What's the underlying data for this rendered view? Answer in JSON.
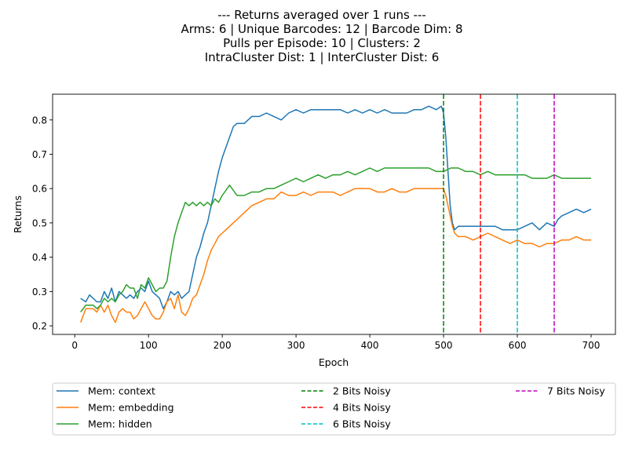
{
  "chart_data": {
    "type": "line",
    "title_lines": [
      "--- Returns averaged over 1 runs ---",
      "Arms: 6 | Unique Barcodes: 12 | Barcode Dim: 8",
      "Pulls per Episode: 10 | Clusters: 2",
      "IntraCluster Dist: 1 | InterCluster Dist: 6"
    ],
    "xlabel": "Epoch",
    "ylabel": "Returns",
    "xlim": [
      -30,
      733
    ],
    "ylim": [
      0.175,
      0.875
    ],
    "xticks": [
      0,
      100,
      200,
      300,
      400,
      500,
      600,
      700
    ],
    "yticks": [
      0.2,
      0.3,
      0.4,
      0.5,
      0.6,
      0.7,
      0.8
    ],
    "ytick_labels": [
      "0.2",
      "0.3",
      "0.4",
      "0.5",
      "0.6",
      "0.7",
      "0.8"
    ],
    "grid": false,
    "legend_placement": "below plot, 3 columns",
    "series": [
      {
        "name": "Mem: context",
        "color": "#1f77b4",
        "x": [
          8,
          15,
          20,
          25,
          30,
          35,
          40,
          45,
          50,
          55,
          60,
          65,
          70,
          75,
          80,
          85,
          90,
          95,
          100,
          105,
          110,
          115,
          120,
          125,
          130,
          135,
          140,
          145,
          150,
          155,
          160,
          165,
          170,
          175,
          180,
          185,
          190,
          195,
          200,
          205,
          210,
          215,
          220,
          225,
          230,
          240,
          250,
          260,
          270,
          280,
          290,
          300,
          310,
          320,
          330,
          340,
          350,
          360,
          370,
          380,
          390,
          400,
          410,
          420,
          430,
          440,
          450,
          460,
          470,
          480,
          490,
          497,
          500,
          503,
          506,
          509,
          512,
          515,
          520,
          530,
          540,
          550,
          560,
          570,
          580,
          590,
          600,
          610,
          620,
          630,
          640,
          650,
          655,
          660,
          670,
          680,
          690,
          700
        ],
        "values": [
          0.28,
          0.27,
          0.29,
          0.28,
          0.27,
          0.27,
          0.3,
          0.28,
          0.31,
          0.27,
          0.3,
          0.29,
          0.28,
          0.29,
          0.28,
          0.3,
          0.31,
          0.3,
          0.33,
          0.3,
          0.29,
          0.28,
          0.25,
          0.27,
          0.3,
          0.29,
          0.3,
          0.28,
          0.29,
          0.3,
          0.35,
          0.4,
          0.43,
          0.47,
          0.5,
          0.55,
          0.6,
          0.65,
          0.69,
          0.72,
          0.75,
          0.78,
          0.79,
          0.79,
          0.79,
          0.81,
          0.81,
          0.82,
          0.81,
          0.8,
          0.82,
          0.83,
          0.82,
          0.83,
          0.83,
          0.83,
          0.83,
          0.83,
          0.82,
          0.83,
          0.82,
          0.83,
          0.82,
          0.83,
          0.82,
          0.82,
          0.82,
          0.83,
          0.83,
          0.84,
          0.83,
          0.84,
          0.82,
          0.75,
          0.65,
          0.55,
          0.5,
          0.48,
          0.49,
          0.49,
          0.49,
          0.49,
          0.49,
          0.49,
          0.48,
          0.48,
          0.48,
          0.49,
          0.5,
          0.48,
          0.5,
          0.49,
          0.51,
          0.52,
          0.53,
          0.54,
          0.53,
          0.54
        ]
      },
      {
        "name": "Mem: embedding",
        "color": "#ff7f0e",
        "x": [
          8,
          15,
          20,
          25,
          30,
          35,
          40,
          45,
          50,
          55,
          60,
          65,
          70,
          75,
          80,
          85,
          90,
          95,
          100,
          105,
          110,
          115,
          120,
          125,
          130,
          135,
          140,
          145,
          150,
          155,
          160,
          165,
          170,
          175,
          180,
          185,
          190,
          195,
          200,
          205,
          210,
          220,
          230,
          240,
          250,
          260,
          270,
          280,
          290,
          300,
          310,
          320,
          330,
          340,
          350,
          360,
          370,
          380,
          390,
          400,
          410,
          420,
          430,
          440,
          450,
          460,
          470,
          480,
          490,
          497,
          500,
          503,
          506,
          509,
          512,
          515,
          520,
          530,
          540,
          550,
          560,
          570,
          580,
          590,
          600,
          610,
          620,
          630,
          640,
          650,
          660,
          670,
          680,
          690,
          700
        ],
        "values": [
          0.21,
          0.25,
          0.25,
          0.25,
          0.24,
          0.26,
          0.24,
          0.26,
          0.23,
          0.21,
          0.24,
          0.25,
          0.24,
          0.24,
          0.22,
          0.23,
          0.25,
          0.27,
          0.25,
          0.23,
          0.22,
          0.22,
          0.24,
          0.27,
          0.28,
          0.25,
          0.29,
          0.24,
          0.23,
          0.25,
          0.28,
          0.29,
          0.32,
          0.35,
          0.39,
          0.42,
          0.44,
          0.46,
          0.47,
          0.48,
          0.49,
          0.51,
          0.53,
          0.55,
          0.56,
          0.57,
          0.57,
          0.59,
          0.58,
          0.58,
          0.59,
          0.58,
          0.59,
          0.59,
          0.59,
          0.58,
          0.59,
          0.6,
          0.6,
          0.6,
          0.59,
          0.59,
          0.6,
          0.59,
          0.59,
          0.6,
          0.6,
          0.6,
          0.6,
          0.6,
          0.6,
          0.58,
          0.55,
          0.52,
          0.49,
          0.47,
          0.46,
          0.46,
          0.45,
          0.46,
          0.47,
          0.46,
          0.45,
          0.44,
          0.45,
          0.44,
          0.44,
          0.43,
          0.44,
          0.44,
          0.45,
          0.45,
          0.46,
          0.45,
          0.45
        ]
      },
      {
        "name": "Mem: hidden",
        "color": "#2ca02c",
        "x": [
          8,
          15,
          20,
          25,
          30,
          35,
          40,
          45,
          50,
          55,
          60,
          65,
          70,
          75,
          80,
          85,
          90,
          95,
          100,
          105,
          110,
          115,
          120,
          125,
          130,
          135,
          140,
          145,
          150,
          155,
          160,
          165,
          170,
          175,
          180,
          185,
          190,
          195,
          200,
          210,
          220,
          230,
          240,
          250,
          260,
          270,
          280,
          290,
          300,
          310,
          320,
          330,
          340,
          350,
          360,
          370,
          380,
          390,
          400,
          410,
          420,
          430,
          440,
          450,
          460,
          470,
          480,
          490,
          500,
          510,
          520,
          530,
          540,
          550,
          560,
          570,
          580,
          590,
          600,
          610,
          620,
          630,
          640,
          650,
          660,
          670,
          680,
          690,
          700
        ],
        "values": [
          0.24,
          0.26,
          0.26,
          0.26,
          0.25,
          0.26,
          0.28,
          0.27,
          0.28,
          0.27,
          0.29,
          0.3,
          0.32,
          0.31,
          0.31,
          0.28,
          0.32,
          0.31,
          0.34,
          0.32,
          0.3,
          0.31,
          0.31,
          0.33,
          0.4,
          0.46,
          0.5,
          0.53,
          0.56,
          0.55,
          0.56,
          0.55,
          0.56,
          0.55,
          0.56,
          0.55,
          0.57,
          0.56,
          0.58,
          0.61,
          0.58,
          0.58,
          0.59,
          0.59,
          0.6,
          0.6,
          0.61,
          0.62,
          0.63,
          0.62,
          0.63,
          0.64,
          0.63,
          0.64,
          0.64,
          0.65,
          0.64,
          0.65,
          0.66,
          0.65,
          0.66,
          0.66,
          0.66,
          0.66,
          0.66,
          0.66,
          0.66,
          0.65,
          0.65,
          0.66,
          0.66,
          0.65,
          0.65,
          0.64,
          0.65,
          0.64,
          0.64,
          0.64,
          0.64,
          0.64,
          0.63,
          0.63,
          0.63,
          0.64,
          0.63,
          0.63,
          0.63,
          0.63,
          0.63
        ]
      }
    ],
    "vlines": [
      {
        "name": "2 Bits Noisy",
        "x": 500,
        "color": "#008000"
      },
      {
        "name": "4 Bits Noisy",
        "x": 550,
        "color": "#ff0000"
      },
      {
        "name": "6 Bits Noisy",
        "x": 600,
        "color": "#00bfbf"
      },
      {
        "name": "7 Bits Noisy",
        "x": 650,
        "color": "#bf00bf"
      }
    ]
  }
}
